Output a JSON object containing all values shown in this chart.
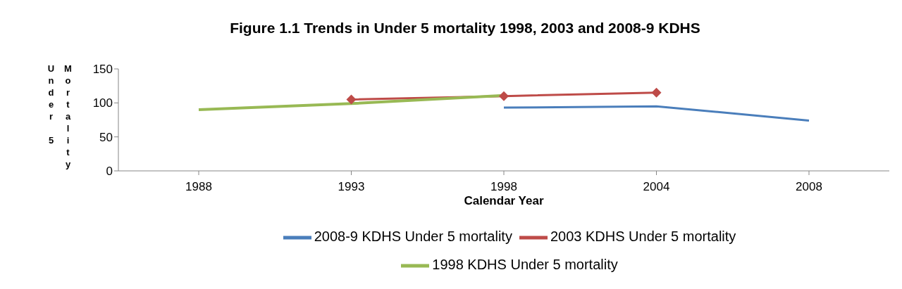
{
  "chart_data": {
    "type": "line",
    "title": "Figure 1.1 Trends in Under 5 mortality 1998, 2003 and 2008-9 KDHS",
    "xlabel": "Calendar Year",
    "ylabel": "Under 5 Mortality",
    "categories": [
      "1988",
      "1993",
      "1998",
      "2004",
      "2008"
    ],
    "series": [
      {
        "name": "2008-9 KDHS Under 5 mortality",
        "color": "#4a7ebb",
        "marker": "none",
        "values": [
          null,
          null,
          93,
          95,
          74
        ]
      },
      {
        "name": "2003 KDHS Under 5 mortality",
        "color": "#be4b48",
        "marker": "diamond",
        "values": [
          null,
          105,
          110,
          115,
          null
        ]
      },
      {
        "name": "1998 KDHS Under 5 mortality",
        "color": "#98b954",
        "marker": "none",
        "values": [
          90,
          99,
          111,
          null,
          null
        ]
      }
    ],
    "ylim": [
      0,
      150
    ],
    "yticks": [
      0,
      50,
      100,
      150
    ],
    "grid": false,
    "legend": "bottom"
  }
}
